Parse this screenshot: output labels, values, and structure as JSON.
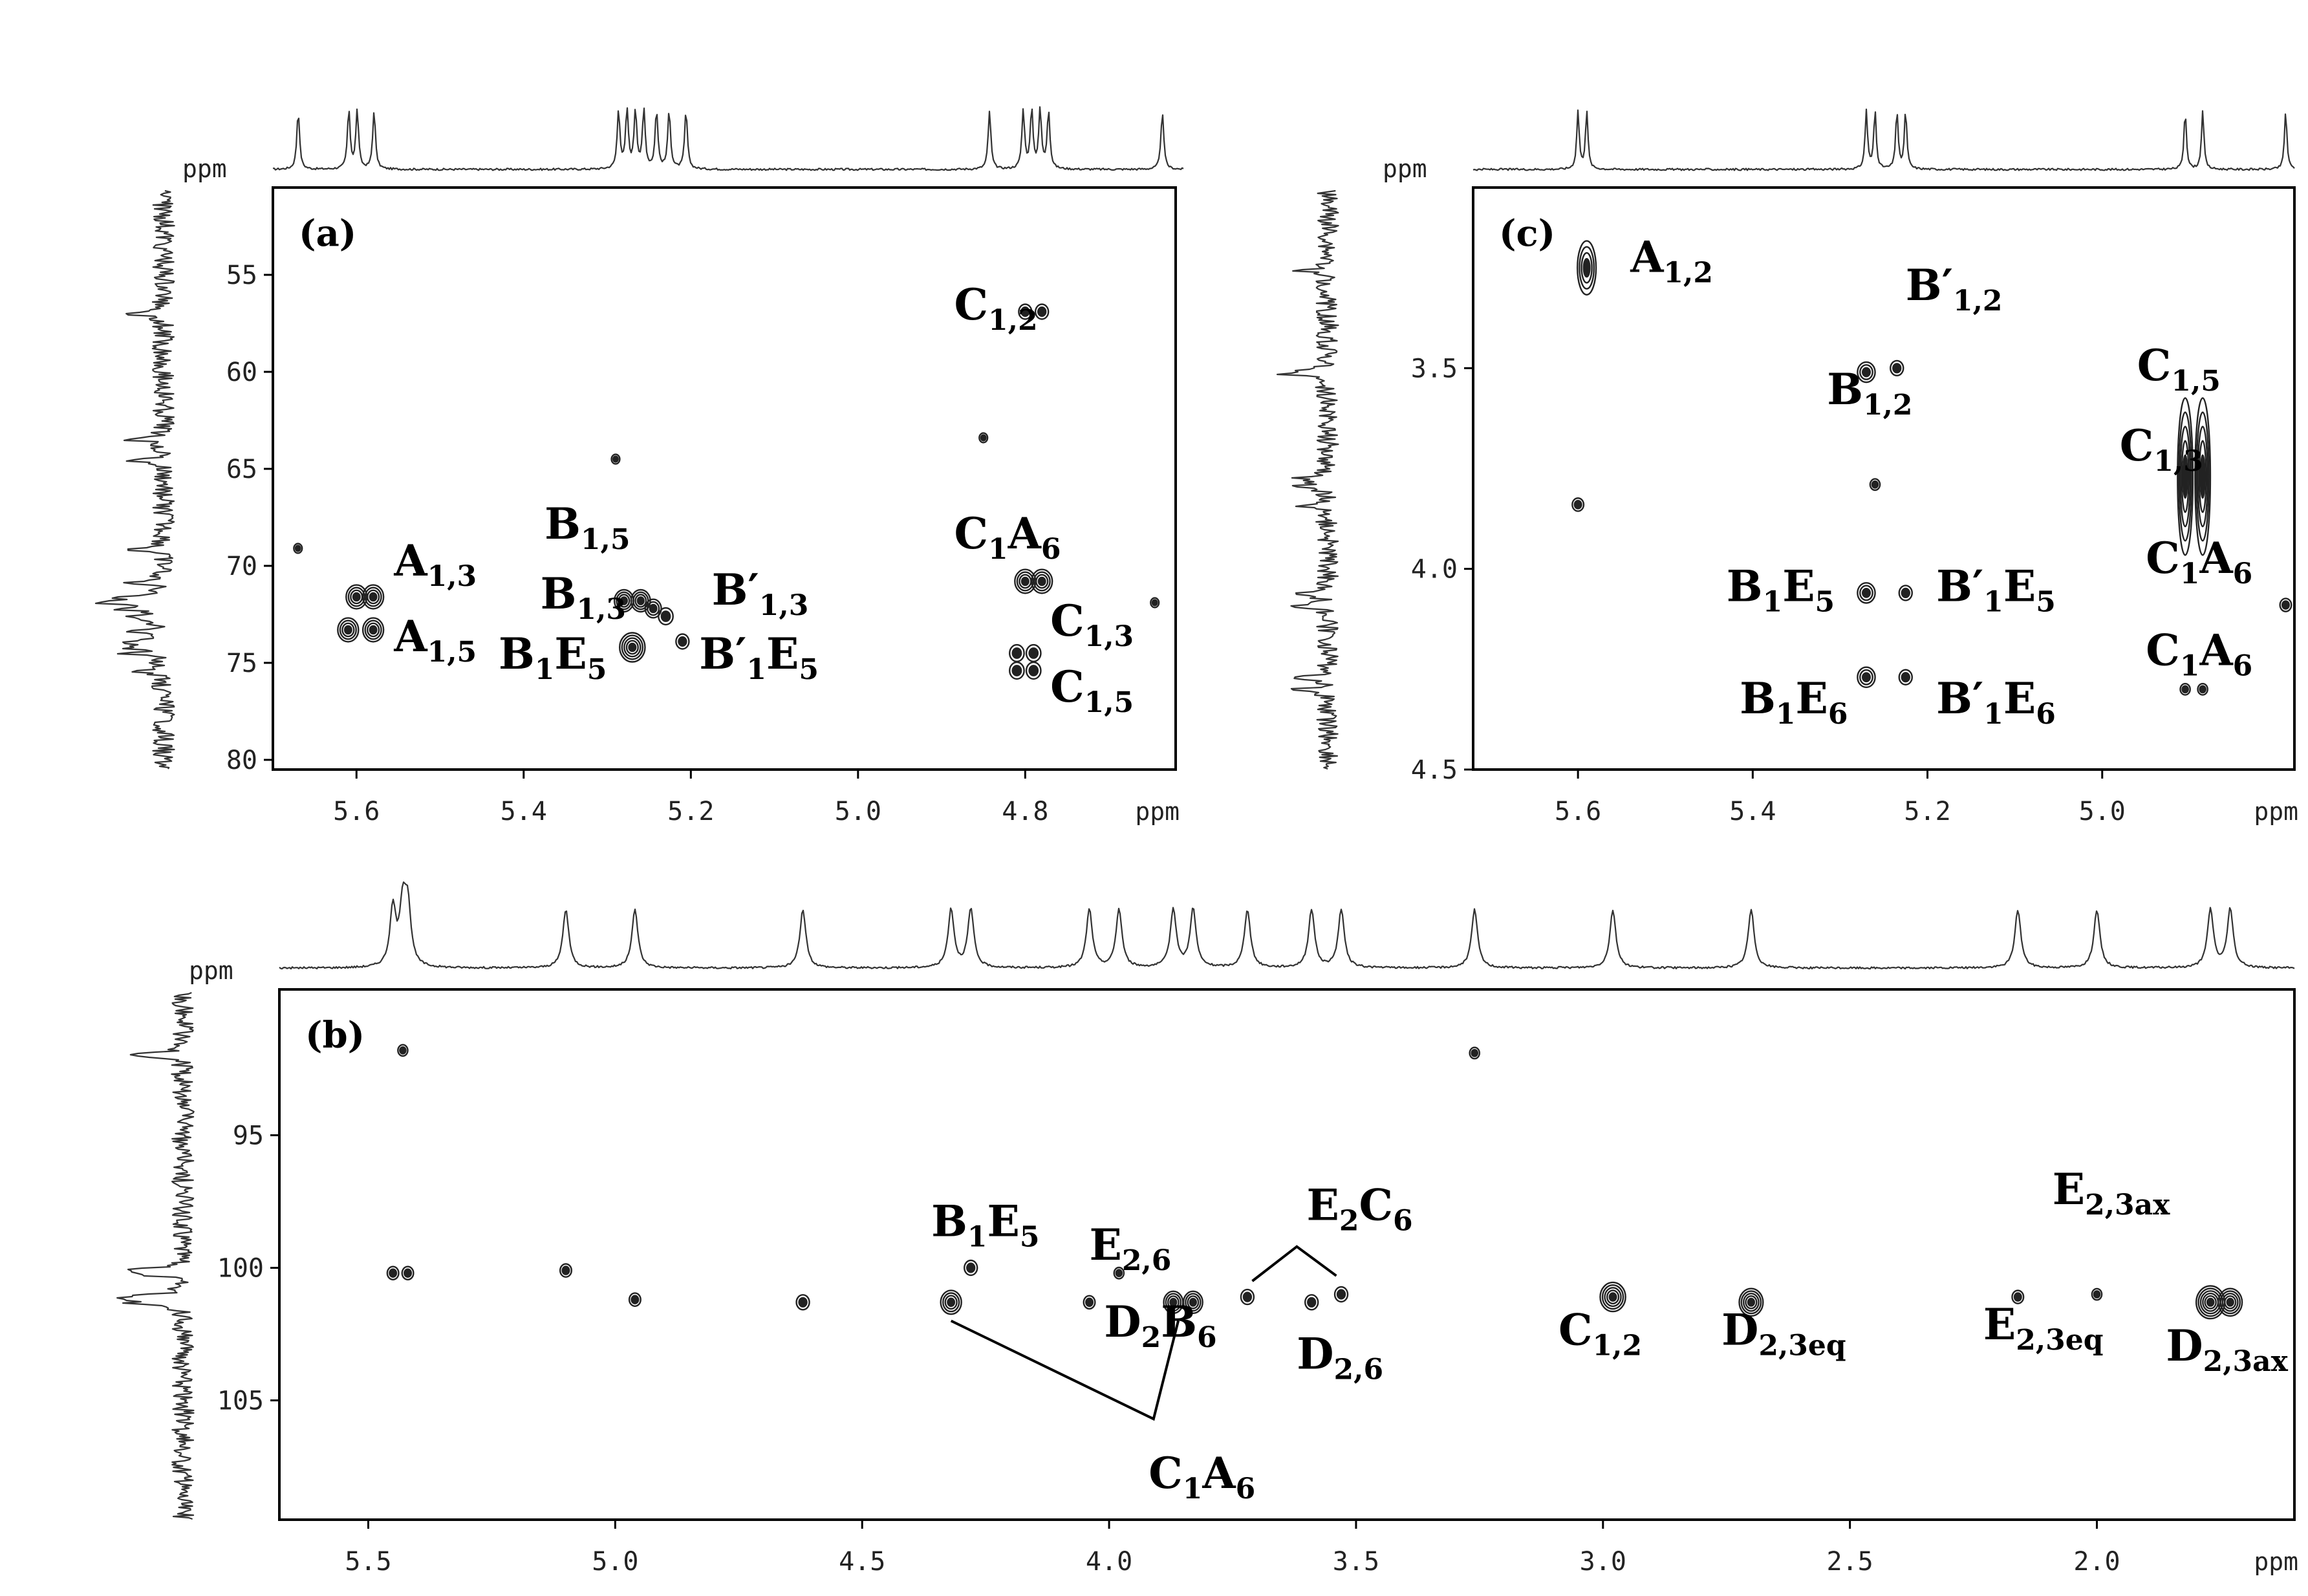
{
  "chart_data": [
    {
      "panel": "(a)",
      "type": "heatmap",
      "x_unit": "ppm",
      "y_unit": "ppm",
      "xlim": [
        5.7,
        4.62
      ],
      "ylim": [
        50.5,
        80.5
      ],
      "x_ticks": [
        5.6,
        5.4,
        5.2,
        5.0,
        4.8
      ],
      "y_ticks": [
        55,
        60,
        65,
        70,
        75,
        80
      ],
      "peaks": [
        {
          "x": 5.6,
          "y": 71.6,
          "i": 1.0
        },
        {
          "x": 5.58,
          "y": 71.6,
          "i": 1.0
        },
        {
          "x": 5.61,
          "y": 73.3,
          "i": 1.0
        },
        {
          "x": 5.58,
          "y": 73.3,
          "i": 1.0
        },
        {
          "x": 5.28,
          "y": 71.8,
          "i": 0.9
        },
        {
          "x": 5.26,
          "y": 71.8,
          "i": 0.9
        },
        {
          "x": 5.245,
          "y": 72.2,
          "i": 0.7
        },
        {
          "x": 5.23,
          "y": 72.6,
          "i": 0.6
        },
        {
          "x": 5.27,
          "y": 74.2,
          "i": 1.3
        },
        {
          "x": 5.21,
          "y": 73.9,
          "i": 0.5
        },
        {
          "x": 4.8,
          "y": 56.9,
          "i": 0.5
        },
        {
          "x": 4.78,
          "y": 56.9,
          "i": 0.5
        },
        {
          "x": 4.8,
          "y": 70.8,
          "i": 1.0
        },
        {
          "x": 4.78,
          "y": 70.8,
          "i": 1.0
        },
        {
          "x": 4.81,
          "y": 74.5,
          "i": 0.6
        },
        {
          "x": 4.79,
          "y": 74.5,
          "i": 0.6
        },
        {
          "x": 4.81,
          "y": 75.4,
          "i": 0.6
        },
        {
          "x": 4.79,
          "y": 75.4,
          "i": 0.6
        },
        {
          "x": 4.85,
          "y": 63.4,
          "i": 0.2
        },
        {
          "x": 5.29,
          "y": 64.5,
          "i": 0.2
        },
        {
          "x": 5.67,
          "y": 69.1,
          "i": 0.2
        },
        {
          "x": 4.645,
          "y": 71.9,
          "i": 0.2
        }
      ],
      "annotations": [
        {
          "base": "A",
          "sub": "1,3",
          "x": 5.555,
          "y": 70.5
        },
        {
          "base": "A",
          "sub": "1,5",
          "x": 5.555,
          "y": 74.4
        },
        {
          "base": "B",
          "sub": "1,5",
          "x": 5.375,
          "y": 68.6
        },
        {
          "base": "B",
          "sub": "1,3",
          "x": 5.38,
          "y": 72.2
        },
        {
          "base": "B′",
          "sub": "1,3",
          "x": 5.175,
          "y": 72.0
        },
        {
          "base": "B",
          "sub": "1",
          "base2": "E",
          "sub2": "5",
          "x": 5.43,
          "y": 75.3
        },
        {
          "base": "B′",
          "sub": "1",
          "base2": "E",
          "sub2": "5",
          "x": 5.19,
          "y": 75.3
        },
        {
          "base": "C",
          "sub": "1,2",
          "x": 4.885,
          "y": 57.3
        },
        {
          "base": "C",
          "sub": "1",
          "base2": "A",
          "sub2": "6",
          "x": 4.885,
          "y": 69.1
        },
        {
          "base": "C",
          "sub": "1,3",
          "x": 4.77,
          "y": 73.6
        },
        {
          "base": "C",
          "sub": "1,5",
          "x": 4.77,
          "y": 77.0
        }
      ]
    },
    {
      "panel": "(c)",
      "type": "heatmap",
      "x_unit": "ppm",
      "y_unit": "ppm",
      "xlim": [
        5.72,
        4.78
      ],
      "ylim": [
        3.05,
        4.5
      ],
      "x_ticks": [
        5.6,
        5.4,
        5.2,
        5.0
      ],
      "y_ticks": [
        3.5,
        4.0,
        4.5
      ],
      "peaks": [
        {
          "x": 5.59,
          "y": 3.25,
          "i": 1.0,
          "elong": 1
        },
        {
          "x": 5.27,
          "y": 3.51,
          "i": 0.8
        },
        {
          "x": 5.235,
          "y": 3.5,
          "i": 0.5
        },
        {
          "x": 5.27,
          "y": 4.06,
          "i": 0.8
        },
        {
          "x": 5.225,
          "y": 4.06,
          "i": 0.5
        },
        {
          "x": 5.27,
          "y": 4.27,
          "i": 0.8
        },
        {
          "x": 5.225,
          "y": 4.27,
          "i": 0.5
        },
        {
          "x": 4.905,
          "y": 3.77,
          "i": 1.3,
          "elong": 2
        },
        {
          "x": 4.885,
          "y": 3.77,
          "i": 1.3,
          "elong": 2
        },
        {
          "x": 4.905,
          "y": 4.3,
          "i": 0.3
        },
        {
          "x": 4.885,
          "y": 4.3,
          "i": 0.3
        },
        {
          "x": 5.26,
          "y": 3.79,
          "i": 0.3
        },
        {
          "x": 5.6,
          "y": 3.84,
          "i": 0.4
        },
        {
          "x": 4.79,
          "y": 4.09,
          "i": 0.4
        }
      ],
      "annotations": [
        {
          "base": "A",
          "sub": "1,2",
          "x": 5.54,
          "y": 3.26
        },
        {
          "base": "B′",
          "sub": "1,2",
          "x": 5.225,
          "y": 3.33
        },
        {
          "base": "B",
          "sub": "1,2",
          "x": 5.315,
          "y": 3.59
        },
        {
          "base": "C",
          "sub": "1,5",
          "x": 4.96,
          "y": 3.53
        },
        {
          "base": "C",
          "sub": "1,3",
          "x": 4.98,
          "y": 3.73
        },
        {
          "base": "C",
          "sub": "1",
          "base2": "A",
          "sub2": "6",
          "x": 4.95,
          "y": 4.01
        },
        {
          "base": "B",
          "sub": "1",
          "base2": "E",
          "sub2": "5",
          "x": 5.43,
          "y": 4.08
        },
        {
          "base": "B′",
          "sub": "1",
          "base2": "E",
          "sub2": "5",
          "x": 5.19,
          "y": 4.08
        },
        {
          "base": "B",
          "sub": "1",
          "base2": "E",
          "sub2": "6",
          "x": 5.415,
          "y": 4.36
        },
        {
          "base": "B′",
          "sub": "1",
          "base2": "E",
          "sub2": "6",
          "x": 5.19,
          "y": 4.36
        },
        {
          "base": "C",
          "sub": "1",
          "base2": "A",
          "sub2": "6",
          "x": 4.95,
          "y": 4.24
        }
      ]
    },
    {
      "panel": "(b)",
      "type": "heatmap",
      "x_unit": "ppm",
      "y_unit": "ppm",
      "xlim": [
        5.68,
        1.6
      ],
      "ylim": [
        89.5,
        109.5
      ],
      "x_ticks": [
        5.5,
        5.0,
        4.5,
        4.0,
        3.5,
        3.0,
        2.5,
        2.0
      ],
      "y_ticks": [
        95,
        100,
        105
      ],
      "peaks": [
        {
          "x": 5.43,
          "y": 91.8,
          "i": 0.3
        },
        {
          "x": 5.45,
          "y": 100.2,
          "i": 0.4
        },
        {
          "x": 5.42,
          "y": 100.2,
          "i": 0.4
        },
        {
          "x": 5.1,
          "y": 100.1,
          "i": 0.4
        },
        {
          "x": 4.96,
          "y": 101.2,
          "i": 0.4
        },
        {
          "x": 4.62,
          "y": 101.3,
          "i": 0.5
        },
        {
          "x": 4.32,
          "y": 101.3,
          "i": 1.0
        },
        {
          "x": 4.28,
          "y": 100.0,
          "i": 0.5
        },
        {
          "x": 4.04,
          "y": 101.3,
          "i": 0.4
        },
        {
          "x": 3.98,
          "y": 100.2,
          "i": 0.3
        },
        {
          "x": 3.87,
          "y": 101.3,
          "i": 0.9
        },
        {
          "x": 3.83,
          "y": 101.3,
          "i": 0.9
        },
        {
          "x": 3.72,
          "y": 101.1,
          "i": 0.5
        },
        {
          "x": 3.59,
          "y": 101.3,
          "i": 0.5
        },
        {
          "x": 3.53,
          "y": 101.0,
          "i": 0.5
        },
        {
          "x": 3.26,
          "y": 91.9,
          "i": 0.3
        },
        {
          "x": 2.98,
          "y": 101.1,
          "i": 1.3
        },
        {
          "x": 2.7,
          "y": 101.3,
          "i": 1.2
        },
        {
          "x": 2.16,
          "y": 101.1,
          "i": 0.4
        },
        {
          "x": 2.0,
          "y": 101.0,
          "i": 0.3
        },
        {
          "x": 1.77,
          "y": 101.3,
          "i": 1.5
        },
        {
          "x": 1.73,
          "y": 101.3,
          "i": 1.2
        }
      ],
      "annotations": [
        {
          "base": "B",
          "sub": "1",
          "base2": "E",
          "sub2": "5",
          "x": 4.36,
          "y": 98.8
        },
        {
          "base": "E",
          "sub": "2,6",
          "x": 4.04,
          "y": 99.7
        },
        {
          "base": "E",
          "sub": "2",
          "base2": "C",
          "sub2": "6",
          "x": 3.6,
          "y": 98.2
        },
        {
          "base": "D",
          "sub": "2",
          "base2": "B",
          "sub2": "6",
          "x": 4.01,
          "y": 102.6
        },
        {
          "base": "D",
          "sub": "2,6",
          "x": 3.62,
          "y": 103.8
        },
        {
          "base": "C",
          "sub": "1",
          "base2": "A",
          "sub2": "6",
          "x": 3.92,
          "y": 108.3
        },
        {
          "base": "C",
          "sub": "1,2",
          "x": 3.09,
          "y": 102.9
        },
        {
          "base": "D",
          "sub": "2,3eq",
          "x": 2.76,
          "y": 102.9
        },
        {
          "base": "E",
          "sub": "2,3eq",
          "x": 2.23,
          "y": 102.7
        },
        {
          "base": "E",
          "sub": "2,3ax",
          "x": 2.09,
          "y": 97.6
        },
        {
          "base": "D",
          "sub": "2,3ax",
          "x": 1.86,
          "y": 103.5
        }
      ],
      "leaders": [
        [
          [
            4.32,
            102.0
          ],
          [
            3.91,
            105.7
          ],
          [
            3.86,
            102.0
          ]
        ],
        [
          [
            3.71,
            100.5
          ],
          [
            3.62,
            99.2
          ],
          [
            3.54,
            100.3
          ]
        ]
      ]
    }
  ]
}
